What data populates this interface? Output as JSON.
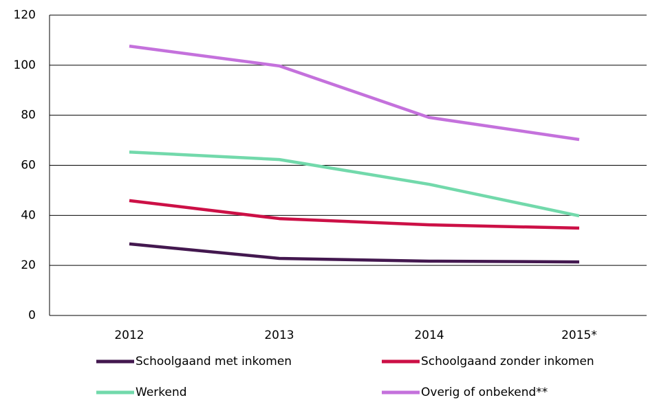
{
  "chart_data": {
    "type": "line",
    "categories": [
      "2012",
      "2013",
      "2014",
      "2015*"
    ],
    "series": [
      {
        "name": "Schoolgaand met inkomen",
        "color": "#43184f",
        "values": [
          28.6,
          22.8,
          21.7,
          21.4
        ]
      },
      {
        "name": "Schoolgaand zonder inkomen",
        "color": "#cc1046",
        "values": [
          45.9,
          38.7,
          36.2,
          34.9
        ]
      },
      {
        "name": "Werkend",
        "color": "#72d9ab",
        "values": [
          65.3,
          62.3,
          52.4,
          39.8
        ]
      },
      {
        "name": "Overig of onbekend**",
        "color": "#c471dc",
        "values": [
          107.6,
          99.7,
          79.1,
          70.3
        ]
      }
    ],
    "ylim": [
      0,
      120
    ],
    "yticks": [
      0,
      20,
      40,
      60,
      80,
      100,
      120
    ],
    "grid": true
  }
}
